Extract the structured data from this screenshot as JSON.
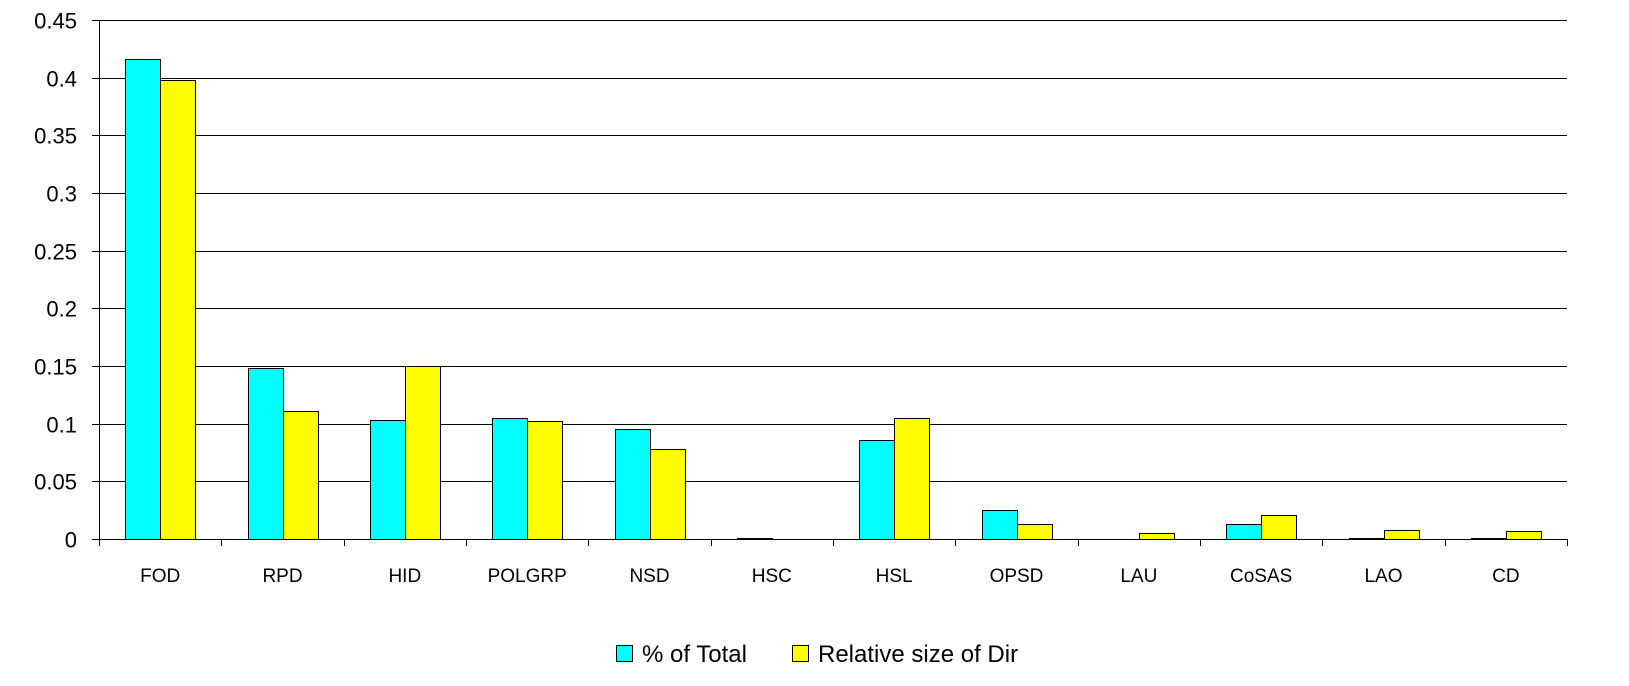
{
  "chart_data": {
    "type": "bar",
    "title": "",
    "xlabel": "",
    "ylabel": "",
    "ylim": [
      0,
      0.45
    ],
    "yticks": [
      "0",
      "0.05",
      "0.1",
      "0.15",
      "0.2",
      "0.25",
      "0.3",
      "0.35",
      "0.4",
      "0.45"
    ],
    "grid": "horizontal",
    "legend_position": "bottom",
    "categories": [
      "FOD",
      "RPD",
      "HID",
      "POLGRP",
      "NSD",
      "HSC",
      "HSL",
      "OPSD",
      "LAU",
      "CoSAS",
      "LAO",
      "CD"
    ],
    "series": [
      {
        "name": "% of Total",
        "color": "#00ffff",
        "values": [
          0.416,
          0.148,
          0.103,
          0.105,
          0.095,
          0.001,
          0.086,
          0.025,
          0.0,
          0.013,
          0.001,
          0.001
        ]
      },
      {
        "name": "Relative size of Dir",
        "color": "#ffff00",
        "values": [
          0.398,
          0.111,
          0.15,
          0.102,
          0.078,
          0.0,
          0.105,
          0.013,
          0.005,
          0.021,
          0.008,
          0.007
        ]
      }
    ]
  }
}
